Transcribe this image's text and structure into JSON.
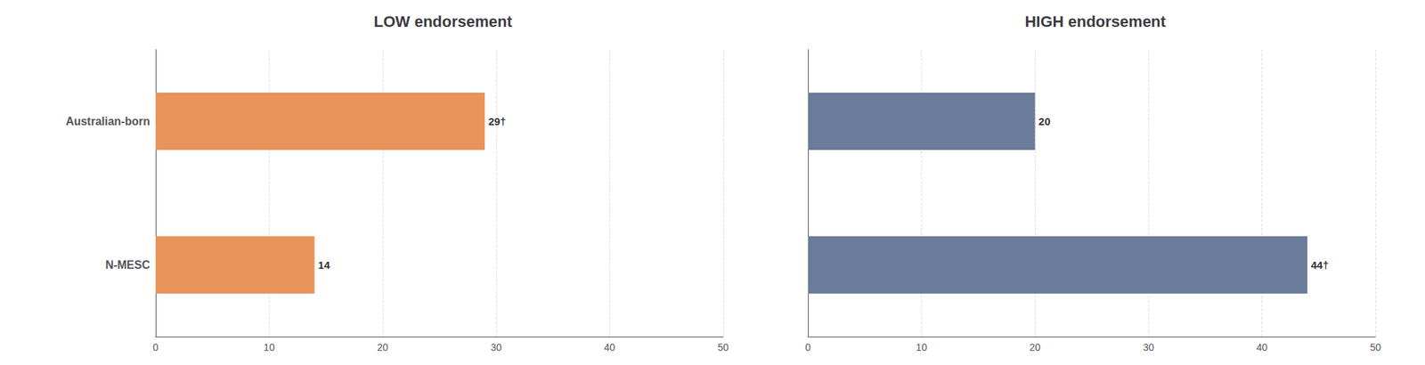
{
  "chart_data": [
    {
      "type": "bar",
      "orientation": "horizontal",
      "title": "LOW endorsement",
      "categories": [
        "Australian-born",
        "N-MESC"
      ],
      "values": [
        29,
        14
      ],
      "value_labels": [
        "29†",
        "14"
      ],
      "data_labels": true,
      "color": "#E8935A",
      "xlim": [
        0,
        50
      ],
      "xticks": [
        0,
        10,
        20,
        30,
        40,
        50
      ],
      "grid": true
    },
    {
      "type": "bar",
      "orientation": "horizontal",
      "title": "HIGH endorsement",
      "categories": [
        "Australian-born",
        "N-MESC"
      ],
      "values": [
        20,
        44
      ],
      "value_labels": [
        "20",
        "44†"
      ],
      "data_labels": true,
      "color": "#6B7B9A",
      "xlim": [
        0,
        50
      ],
      "xticks": [
        0,
        10,
        20,
        30,
        40,
        50
      ],
      "grid": true,
      "tick_labels": "x"
    }
  ]
}
